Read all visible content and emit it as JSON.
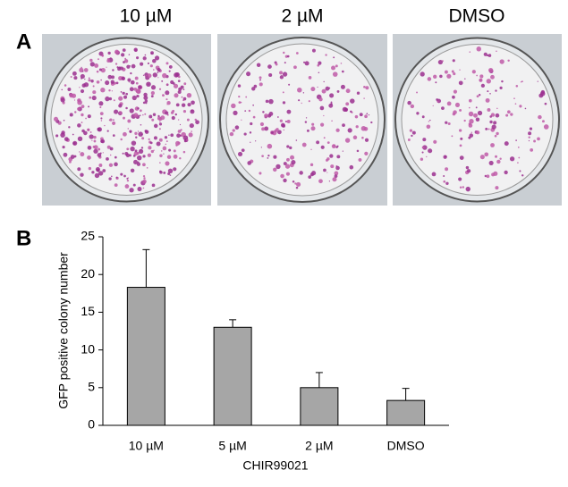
{
  "panel_a": {
    "label": "A",
    "images": [
      {
        "label": "10 µM"
      },
      {
        "label": "2 µM"
      },
      {
        "label": "DMSO"
      }
    ]
  },
  "panel_b_label": "B",
  "chart_data": {
    "type": "bar",
    "y_label": "GFP positive colony number",
    "x_label": "CHIR99021",
    "categories": [
      "10 µM",
      "5 µM",
      "2 µM",
      "DMSO"
    ],
    "values": [
      18.3,
      13,
      5,
      3.3
    ],
    "errors": [
      5,
      1,
      2,
      1.6
    ],
    "color": "#a6a6a6",
    "ylim": [
      0,
      25
    ],
    "yticks": [
      0,
      5,
      10,
      15,
      20,
      25
    ]
  }
}
